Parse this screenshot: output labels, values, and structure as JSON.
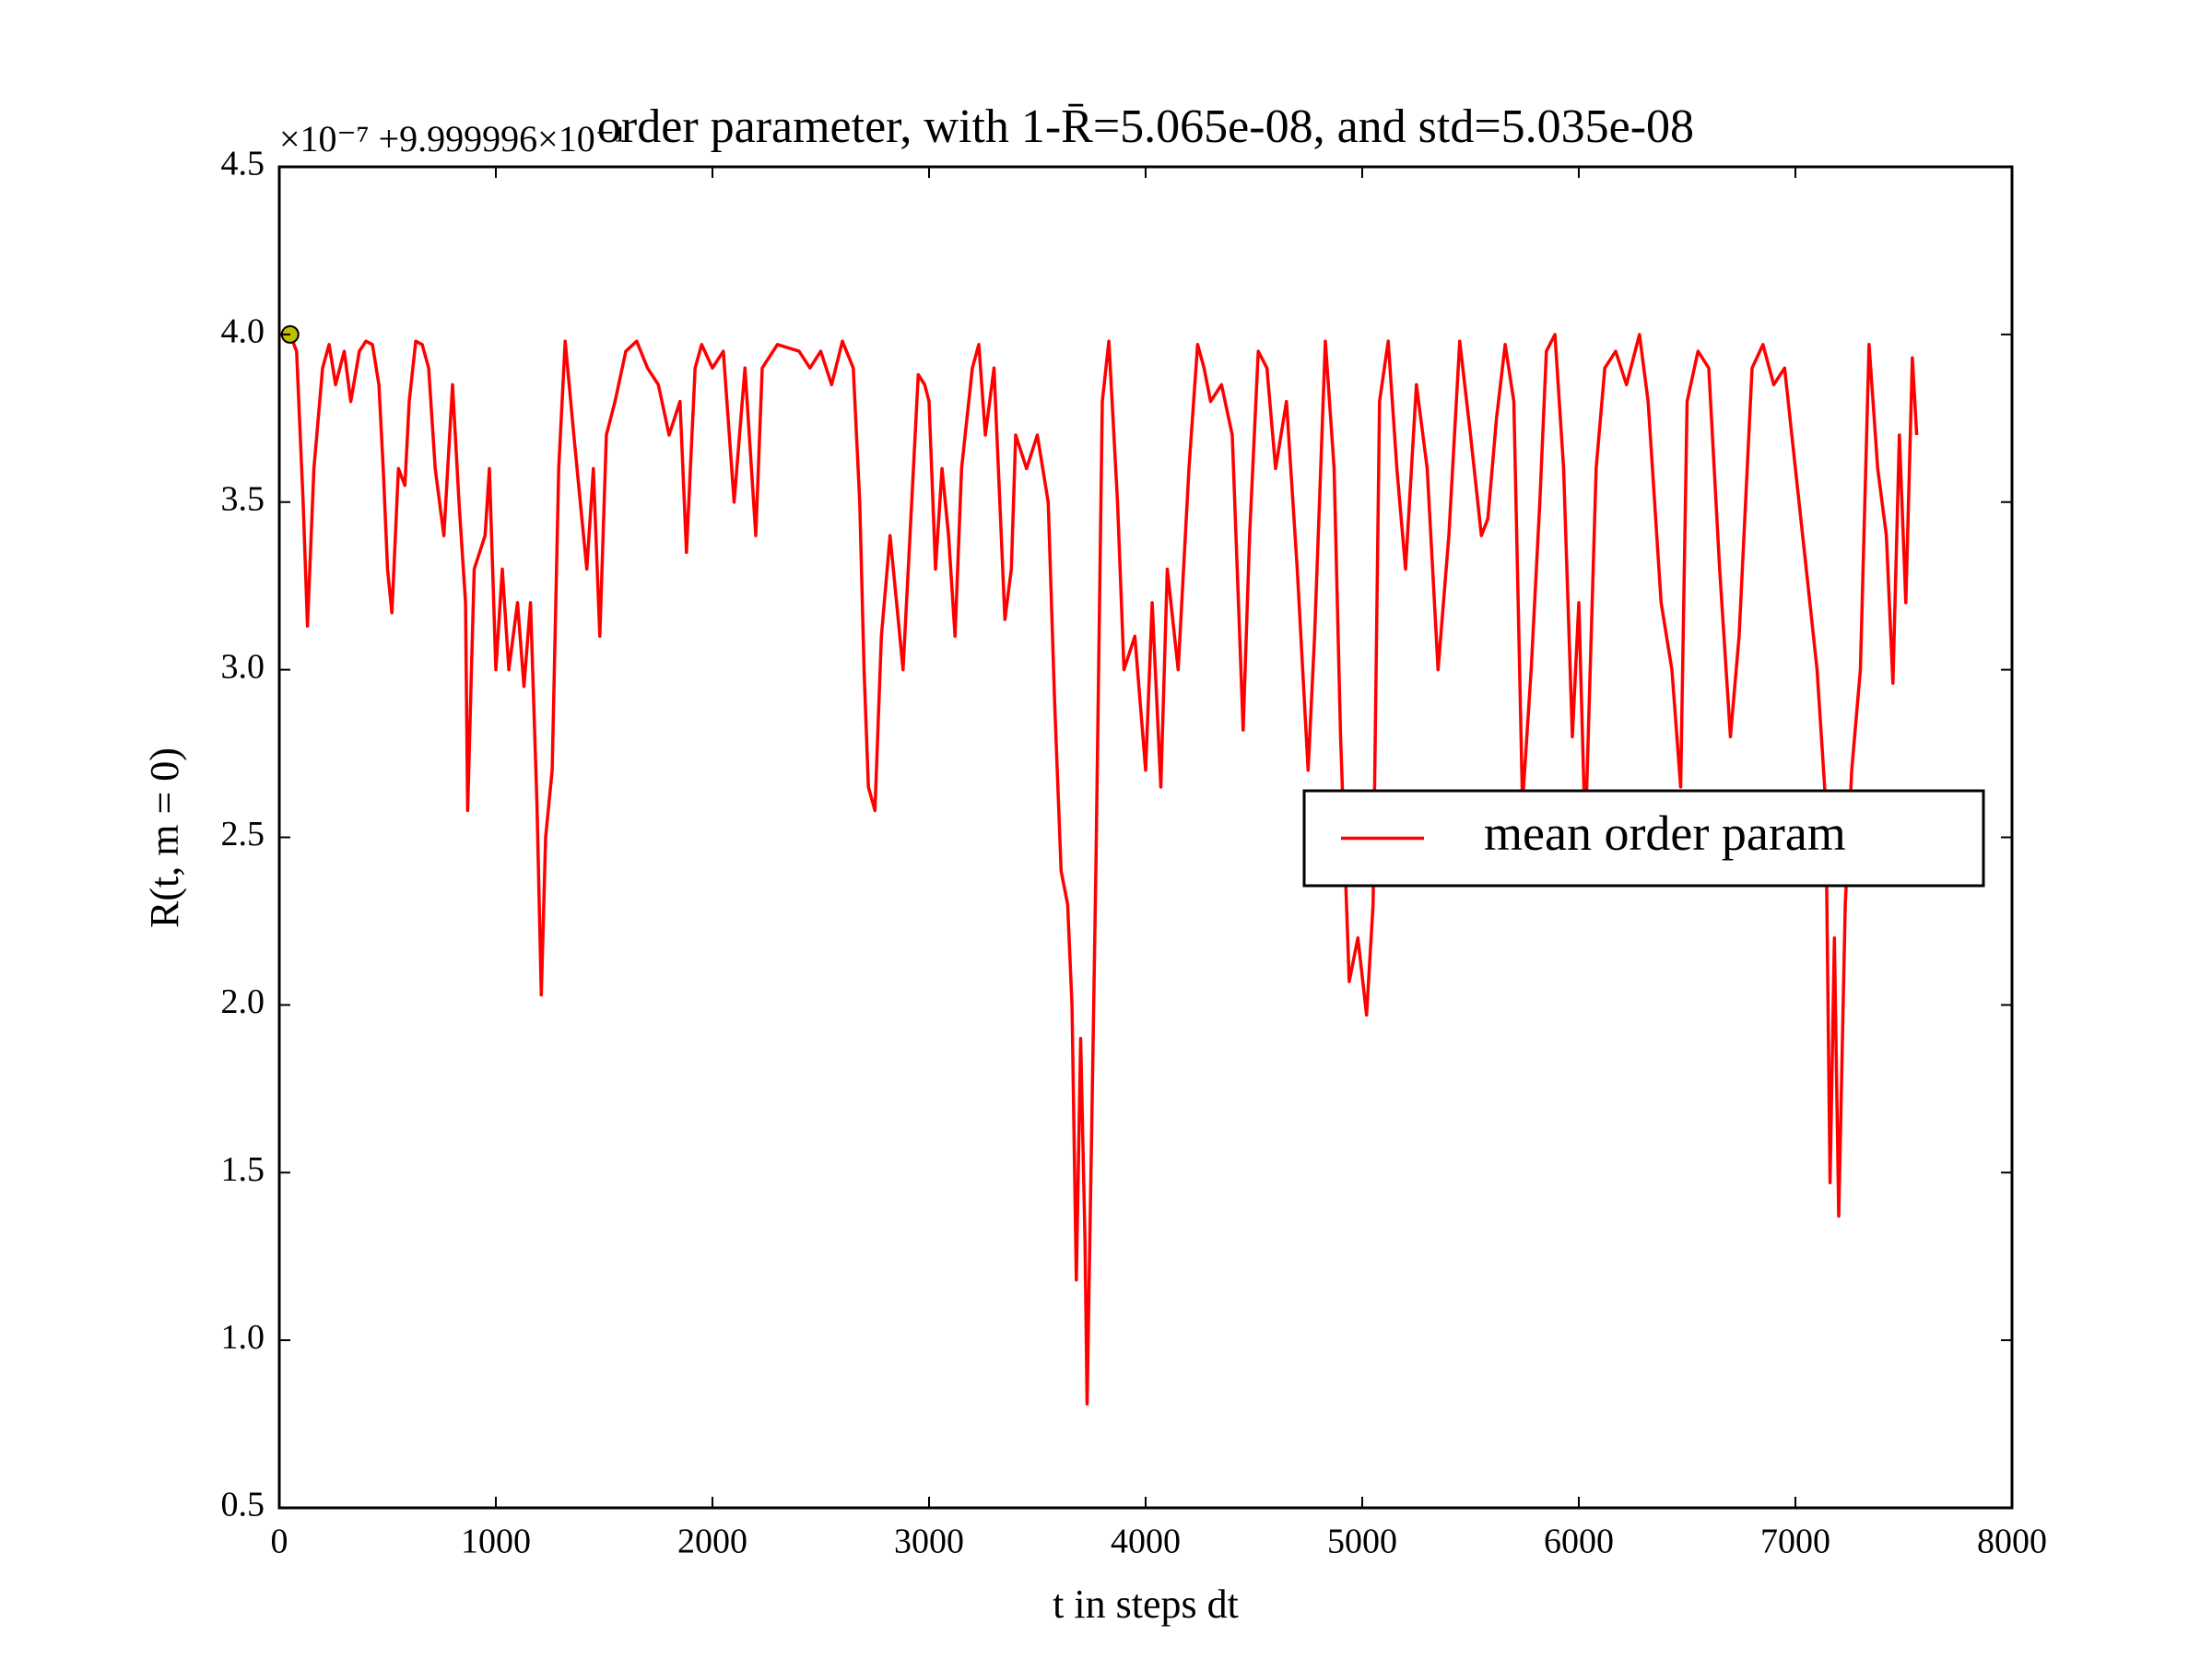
{
  "chart_data": {
    "type": "line",
    "title": "order parameter, with 1-R̄=5.065e-08, and std=5.035e-08",
    "y_offset_text": "×10⁻⁷ +9.999996×10⁻¹",
    "xlabel": "t in steps dt",
    "ylabel": "R(t, m = 0)",
    "xlim": [
      0,
      8000
    ],
    "ylim": [
      0.5,
      4.5
    ],
    "xticks": [
      0,
      1000,
      2000,
      3000,
      4000,
      5000,
      6000,
      7000,
      8000
    ],
    "yticks": [
      0.5,
      {
        "value": 1.0,
        "label": "1.0"
      },
      1.5,
      {
        "value": 2.0,
        "label": "2.0"
      },
      2.5,
      {
        "value": 3.0,
        "label": "3.0"
      },
      3.5,
      {
        "value": 4.0,
        "label": "4.0"
      },
      4.5
    ],
    "legend_position": "center right",
    "marker": {
      "x": 50,
      "y": 4.0,
      "color": "#bfbf00"
    },
    "x": [
      0,
      50,
      80,
      110,
      130,
      160,
      200,
      230,
      260,
      300,
      330,
      370,
      400,
      430,
      460,
      480,
      500,
      520,
      550,
      580,
      600,
      630,
      660,
      690,
      720,
      760,
      800,
      830,
      860,
      870,
      900,
      950,
      970,
      1000,
      1030,
      1060,
      1100,
      1130,
      1160,
      1190,
      1210,
      1230,
      1260,
      1290,
      1320,
      1360,
      1390,
      1420,
      1450,
      1480,
      1510,
      1550,
      1600,
      1650,
      1700,
      1750,
      1800,
      1850,
      1880,
      1920,
      1950,
      2000,
      2050,
      2100,
      2150,
      2200,
      2230,
      2300,
      2400,
      2450,
      2500,
      2550,
      2600,
      2650,
      2680,
      2700,
      2720,
      2750,
      2780,
      2820,
      2850,
      2880,
      2920,
      2950,
      2980,
      3000,
      3030,
      3060,
      3090,
      3120,
      3150,
      3200,
      3230,
      3260,
      3300,
      3350,
      3380,
      3400,
      3450,
      3500,
      3550,
      3580,
      3610,
      3640,
      3660,
      3680,
      3700,
      3720,
      3730,
      3750,
      3770,
      3800,
      3830,
      3870,
      3900,
      3950,
      4000,
      4030,
      4070,
      4100,
      4150,
      4200,
      4240,
      4270,
      4300,
      4350,
      4400,
      4450,
      4480,
      4520,
      4560,
      4600,
      4650,
      4700,
      4750,
      4780,
      4830,
      4870,
      4900,
      4940,
      4980,
      5020,
      5050,
      5080,
      5120,
      5160,
      5200,
      5250,
      5300,
      5350,
      5400,
      5450,
      5500,
      5550,
      5580,
      5620,
      5660,
      5700,
      5740,
      5780,
      5820,
      5850,
      5890,
      5930,
      5970,
      6000,
      6030,
      6080,
      6120,
      6170,
      6220,
      6280,
      6320,
      6380,
      6430,
      6470,
      6500,
      6550,
      6600,
      6650,
      6700,
      6740,
      6800,
      6850,
      6900,
      6950,
      7000,
      7050,
      7100,
      7140,
      7160,
      7180,
      7200,
      7230,
      7260,
      7300,
      7340,
      7380,
      7420,
      7450,
      7480,
      7510,
      7540,
      7560
    ],
    "series": [
      {
        "name": "mean order param",
        "color": "#ff0000",
        "values": [
          4.0,
          4.0,
          3.95,
          3.5,
          3.13,
          3.6,
          3.9,
          3.97,
          3.85,
          3.95,
          3.8,
          3.95,
          3.98,
          3.97,
          3.85,
          3.6,
          3.3,
          3.17,
          3.6,
          3.55,
          3.8,
          3.98,
          3.97,
          3.9,
          3.6,
          3.4,
          3.85,
          3.5,
          3.2,
          2.58,
          3.3,
          3.4,
          3.6,
          3.0,
          3.3,
          3.0,
          3.2,
          2.95,
          3.2,
          2.6,
          2.03,
          2.5,
          2.7,
          3.6,
          3.98,
          3.7,
          3.5,
          3.3,
          3.6,
          3.1,
          3.7,
          3.8,
          3.95,
          3.98,
          3.9,
          3.85,
          3.7,
          3.8,
          3.35,
          3.9,
          3.97,
          3.9,
          3.95,
          3.5,
          3.9,
          3.4,
          3.9,
          3.97,
          3.95,
          3.9,
          3.95,
          3.85,
          3.98,
          3.9,
          3.5,
          3.0,
          2.65,
          2.58,
          3.1,
          3.4,
          3.2,
          3.0,
          3.5,
          3.88,
          3.85,
          3.8,
          3.3,
          3.6,
          3.4,
          3.1,
          3.6,
          3.9,
          3.97,
          3.7,
          3.9,
          3.15,
          3.3,
          3.7,
          3.6,
          3.7,
          3.5,
          2.9,
          2.4,
          2.3,
          2.0,
          1.18,
          1.9,
          1.3,
          0.81,
          1.6,
          2.4,
          3.8,
          3.98,
          3.5,
          3.0,
          3.1,
          2.7,
          3.2,
          2.65,
          3.3,
          3.0,
          3.6,
          3.97,
          3.9,
          3.8,
          3.85,
          3.7,
          2.82,
          3.4,
          3.95,
          3.9,
          3.6,
          3.8,
          3.3,
          2.7,
          3.1,
          3.98,
          3.6,
          2.8,
          2.07,
          2.2,
          1.97,
          2.3,
          3.8,
          3.98,
          3.6,
          3.3,
          3.85,
          3.6,
          3.0,
          3.4,
          3.98,
          3.7,
          3.4,
          3.45,
          3.75,
          3.97,
          3.8,
          2.6,
          3.0,
          3.5,
          3.95,
          4.0,
          3.6,
          2.8,
          3.2,
          2.5,
          3.6,
          3.9,
          3.95,
          3.85,
          4.0,
          3.8,
          3.2,
          3.0,
          2.65,
          3.8,
          3.95,
          3.9,
          3.3,
          2.8,
          3.1,
          3.9,
          3.97,
          3.85,
          3.9,
          3.6,
          3.3,
          3.0,
          2.6,
          1.47,
          2.2,
          1.37,
          2.3,
          2.7,
          3.0,
          3.97,
          3.6,
          3.4,
          2.96,
          3.7,
          3.2,
          3.93,
          3.7
        ]
      }
    ]
  }
}
